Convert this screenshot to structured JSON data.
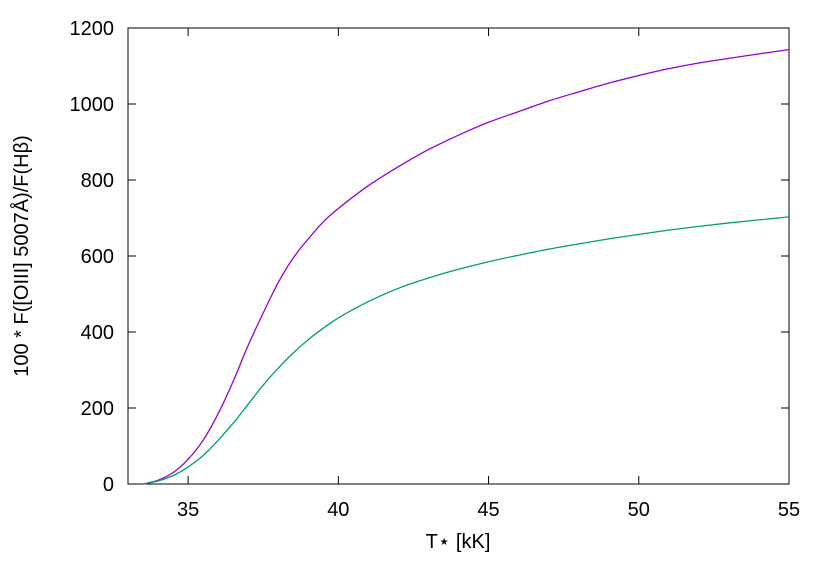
{
  "chart_data": {
    "type": "line",
    "xlabel": "T⋆ [kK]",
    "ylabel": "100 * F([OIII] 5007Å)/F(Hβ)",
    "xlim": [
      33,
      55
    ],
    "ylim": [
      0,
      1200
    ],
    "xticks": [
      35,
      40,
      45,
      50,
      55
    ],
    "yticks": [
      0,
      200,
      400,
      600,
      800,
      1000,
      1200
    ],
    "grid": false,
    "legend": "none",
    "series": [
      {
        "color": "#9400d3",
        "x": [
          33.5,
          34,
          34.5,
          35,
          35.5,
          36,
          36.5,
          37,
          37.5,
          38,
          38.5,
          39,
          39.5,
          40,
          41,
          42,
          43,
          44,
          45,
          46,
          47,
          48,
          49,
          50,
          51,
          52,
          53,
          54,
          55
        ],
        "y": [
          0,
          10,
          30,
          65,
          115,
          185,
          270,
          365,
          450,
          530,
          595,
          645,
          690,
          725,
          785,
          835,
          880,
          918,
          952,
          980,
          1008,
          1032,
          1055,
          1075,
          1093,
          1108,
          1120,
          1132,
          1143
        ]
      },
      {
        "color": "#009e73",
        "x": [
          33.5,
          34,
          34.5,
          35,
          35.5,
          36,
          36.5,
          37,
          37.5,
          38,
          38.5,
          39,
          39.5,
          40,
          41,
          42,
          43,
          44,
          45,
          46,
          47,
          48,
          49,
          50,
          51,
          52,
          53,
          54,
          55
        ],
        "y": [
          0,
          8,
          22,
          45,
          75,
          115,
          160,
          210,
          260,
          305,
          345,
          380,
          410,
          437,
          480,
          515,
          542,
          565,
          585,
          602,
          618,
          632,
          645,
          657,
          668,
          678,
          687,
          695,
          703
        ]
      }
    ]
  }
}
